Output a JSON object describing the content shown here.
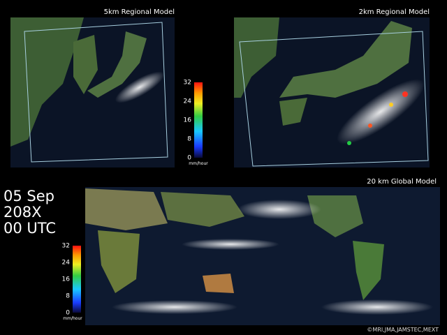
{
  "panels": [
    {
      "title": "5km Regional Model"
    },
    {
      "title": "2km Regional Model"
    },
    {
      "title": "20 km Global Model"
    }
  ],
  "colorbar": {
    "ticks": [
      32,
      24,
      16,
      8,
      0
    ],
    "unit": "mm/hour"
  },
  "timestamp": {
    "date": "05 Sep",
    "year": "208X",
    "time": "00 UTC"
  },
  "credit": "©MRI,JMA,JAMSTEC,MEXT"
}
